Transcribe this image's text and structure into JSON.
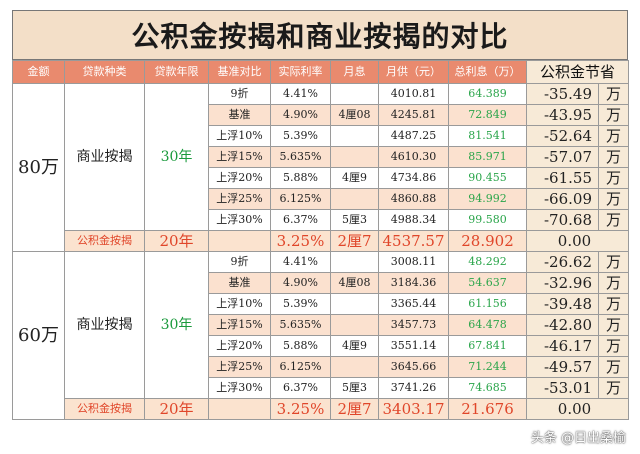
{
  "title": "公积金按揭和商业按揭的对比",
  "headers": [
    "金额",
    "贷款种类",
    "贷款年限",
    "基准对比",
    "实际利率",
    "月息",
    "月供（元）",
    "总利息（万）",
    "公积金节省"
  ],
  "groups": [
    {
      "amount": "80万",
      "kind": "商业按揭",
      "years": "30年",
      "rows": [
        {
          "base": "9折",
          "rate": "4.41%",
          "monthly_interest": "",
          "payment": "4010.81",
          "total_interest": "64.389",
          "saving": "-35.49",
          "unit": "万"
        },
        {
          "base": "基准",
          "rate": "4.90%",
          "monthly_interest": "4厘08",
          "payment": "4245.81",
          "total_interest": "72.849",
          "saving": "-43.95",
          "unit": "万"
        },
        {
          "base": "上浮10%",
          "rate": "5.39%",
          "monthly_interest": "",
          "payment": "4487.25",
          "total_interest": "81.541",
          "saving": "-52.64",
          "unit": "万"
        },
        {
          "base": "上浮15%",
          "rate": "5.635%",
          "monthly_interest": "",
          "payment": "4610.30",
          "total_interest": "85.971",
          "saving": "-57.07",
          "unit": "万"
        },
        {
          "base": "上浮20%",
          "rate": "5.88%",
          "monthly_interest": "4厘9",
          "payment": "4734.86",
          "total_interest": "90.455",
          "saving": "-61.55",
          "unit": "万"
        },
        {
          "base": "上浮25%",
          "rate": "6.125%",
          "monthly_interest": "",
          "payment": "4860.88",
          "total_interest": "94.992",
          "saving": "-66.09",
          "unit": "万"
        },
        {
          "base": "上浮30%",
          "rate": "6.37%",
          "monthly_interest": "5厘3",
          "payment": "4988.34",
          "total_interest": "99.580",
          "saving": "-70.68",
          "unit": "万"
        }
      ],
      "gjj": {
        "kind": "公积金按揭",
        "years": "20年",
        "rate": "3.25%",
        "monthly_interest": "2厘7",
        "payment": "4537.57",
        "total_interest": "28.902",
        "saving": "0.00"
      }
    },
    {
      "amount": "60万",
      "kind": "商业按揭",
      "years": "30年",
      "rows": [
        {
          "base": "9折",
          "rate": "4.41%",
          "monthly_interest": "",
          "payment": "3008.11",
          "total_interest": "48.292",
          "saving": "-26.62",
          "unit": "万"
        },
        {
          "base": "基准",
          "rate": "4.90%",
          "monthly_interest": "4厘08",
          "payment": "3184.36",
          "total_interest": "54.637",
          "saving": "-32.96",
          "unit": "万"
        },
        {
          "base": "上浮10%",
          "rate": "5.39%",
          "monthly_interest": "",
          "payment": "3365.44",
          "total_interest": "61.156",
          "saving": "-39.48",
          "unit": "万"
        },
        {
          "base": "上浮15%",
          "rate": "5.635%",
          "monthly_interest": "",
          "payment": "3457.73",
          "total_interest": "64.478",
          "saving": "-42.80",
          "unit": "万"
        },
        {
          "base": "上浮20%",
          "rate": "5.88%",
          "monthly_interest": "4厘9",
          "payment": "3551.14",
          "total_interest": "67.841",
          "saving": "-46.17",
          "unit": "万"
        },
        {
          "base": "上浮25%",
          "rate": "6.125%",
          "monthly_interest": "",
          "payment": "3645.66",
          "total_interest": "71.244",
          "saving": "-49.57",
          "unit": "万"
        },
        {
          "base": "上浮30%",
          "rate": "6.37%",
          "monthly_interest": "5厘3",
          "payment": "3741.26",
          "total_interest": "74.685",
          "saving": "-53.01",
          "unit": "万"
        }
      ],
      "gjj": {
        "kind": "公积金按揭",
        "years": "20年",
        "rate": "3.25%",
        "monthly_interest": "2厘7",
        "payment": "3403.17",
        "total_interest": "21.676",
        "saving": "0.00"
      }
    }
  ],
  "watermark": "头条 @日出桑榆"
}
